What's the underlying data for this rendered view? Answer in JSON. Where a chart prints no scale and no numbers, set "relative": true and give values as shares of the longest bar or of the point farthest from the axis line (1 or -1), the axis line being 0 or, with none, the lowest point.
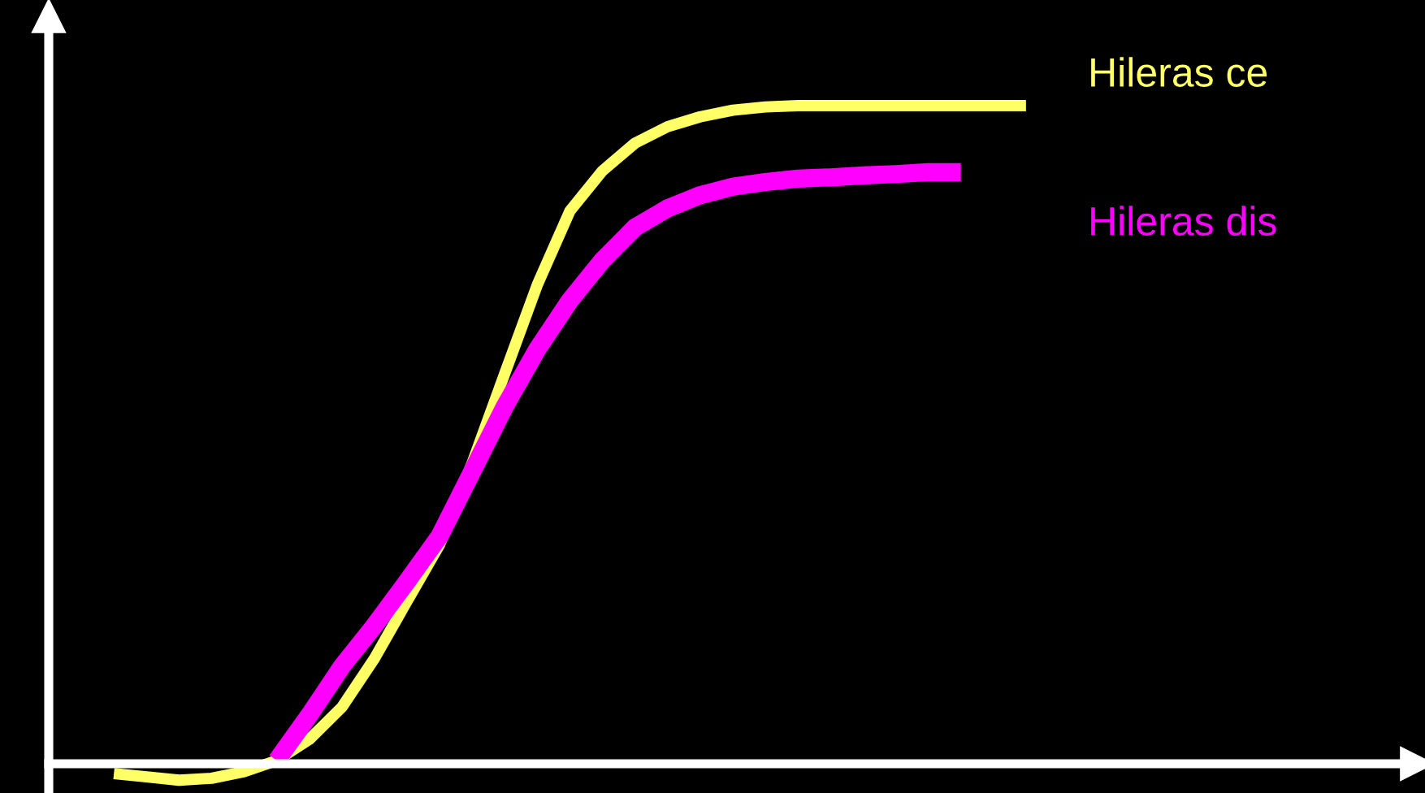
{
  "chart_data": {
    "type": "line",
    "relative": true,
    "legend": false,
    "marker": "none",
    "line_style": "solid",
    "categories": [
      null,
      null,
      null,
      null,
      null,
      null,
      null,
      null,
      null,
      null,
      null,
      null,
      null,
      null,
      null,
      null,
      null,
      null,
      null,
      null,
      null,
      null,
      null,
      null,
      null,
      null,
      null,
      null,
      null,
      null,
      null,
      null,
      null,
      null,
      null,
      null,
      null,
      null,
      null,
      null,
      null,
      null,
      null
    ],
    "series": [
      {
        "name": "Hileras ce",
        "color": "#ffff66",
        "values": [
          null,
          null,
          -0.015,
          -0.02,
          -0.025,
          -0.022,
          -0.012,
          0.005,
          0.037,
          0.086,
          0.16,
          0.247,
          0.333,
          0.457,
          0.593,
          0.728,
          0.84,
          0.901,
          0.943,
          0.968,
          0.983,
          0.993,
          0.998,
          1,
          1,
          1,
          1,
          1,
          1,
          1,
          1,
          null,
          null,
          null,
          null,
          null,
          null,
          null,
          null,
          null,
          null,
          null,
          null
        ]
      },
      {
        "name": "Hileras dis",
        "color": "#ff00ff",
        "values": [
          null,
          null,
          null,
          null,
          null,
          null,
          null,
          0.005,
          0.074,
          0.148,
          0.21,
          0.277,
          0.346,
          0.444,
          0.543,
          0.63,
          0.704,
          0.765,
          0.815,
          0.844,
          0.864,
          0.877,
          0.884,
          0.889,
          0.891,
          0.894,
          0.896,
          0.899,
          0.899,
          null,
          null,
          null,
          null,
          null,
          null,
          null,
          null,
          null,
          null,
          null,
          null,
          null,
          null
        ]
      }
    ]
  }
}
